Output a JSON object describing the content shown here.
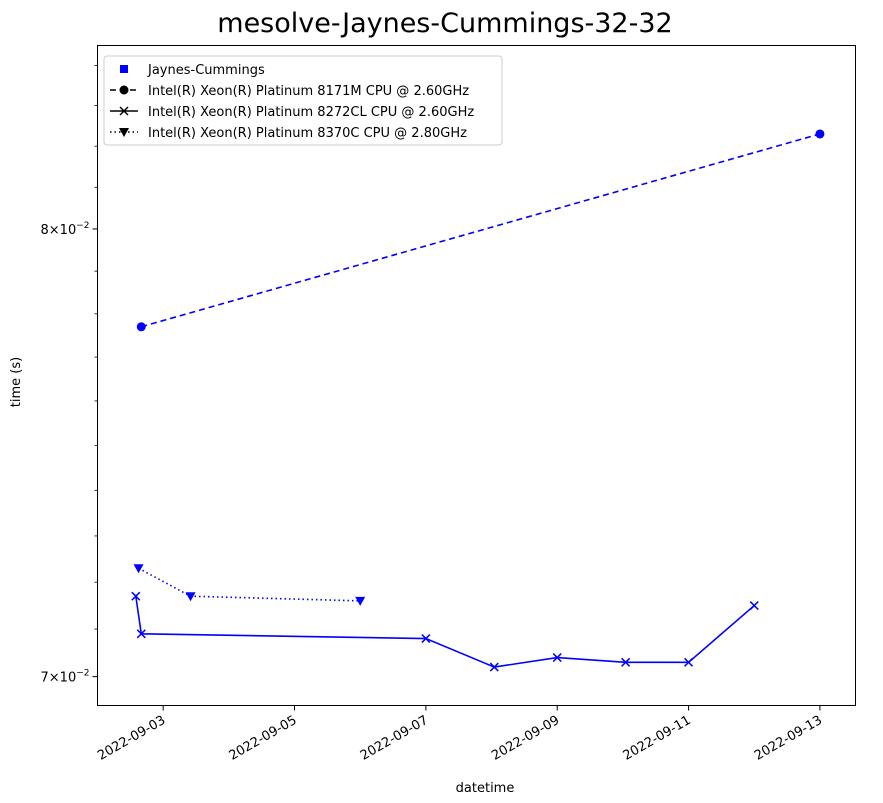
{
  "chart_data": {
    "type": "line",
    "title": "mesolve-Jaynes-Cummings-32-32",
    "xlabel": "datetime",
    "ylabel": "time (s)",
    "yscale": "log",
    "x_tick_labels": [
      "2022-09-03",
      "2022-09-05",
      "2022-09-07",
      "2022-09-09",
      "2022-09-11",
      "2022-09-13"
    ],
    "y_tick_labels": [
      {
        "value": 0.08,
        "mantissa": "8",
        "base": "10",
        "exponent": "−2"
      },
      {
        "value": 0.07,
        "mantissa": "7",
        "base": "10",
        "exponent": "−2"
      }
    ],
    "xlim": [
      "2022-09-02 00:00",
      "2022-09-13 13:00"
    ],
    "ylim": [
      0.0694,
      0.0845
    ],
    "grid": false,
    "legend_position": "top-left",
    "legend_entries": [
      {
        "label": "Jaynes-Cummings",
        "marker": "square",
        "line": "none"
      },
      {
        "label": "Intel(R) Xeon(R) Platinum 8171M CPU @ 2.60GHz",
        "marker": "circle",
        "line": "dashed"
      },
      {
        "label": "Intel(R) Xeon(R) Platinum 8272CL CPU @ 2.60GHz",
        "marker": "x",
        "line": "solid"
      },
      {
        "label": "Intel(R) Xeon(R) Platinum 8370C CPU @ 2.80GHz",
        "marker": "triangle-down",
        "line": "dotted"
      }
    ],
    "series": [
      {
        "name": "Intel(R) Xeon(R) Platinum 8171M CPU @ 2.60GHz",
        "color": "#0000ff",
        "marker": "circle",
        "line": "dashed",
        "x": [
          "2022-09-02 16:00",
          "2022-09-13 00:00"
        ],
        "y": [
          0.0777,
          0.0823
        ]
      },
      {
        "name": "Intel(R) Xeon(R) Platinum 8272CL CPU @ 2.60GHz",
        "color": "#0000ff",
        "marker": "x",
        "line": "solid",
        "x": [
          "2022-09-02 14:00",
          "2022-09-02 16:00",
          "2022-09-07 00:00",
          "2022-09-08 01:00",
          "2022-09-09 00:00",
          "2022-09-10 01:00",
          "2022-09-11 00:00",
          "2022-09-12 00:00"
        ],
        "y": [
          0.0717,
          0.0709,
          0.0708,
          0.0702,
          0.0704,
          0.0703,
          0.0703,
          0.0715
        ]
      },
      {
        "name": "Intel(R) Xeon(R) Platinum 8370C CPU @ 2.80GHz",
        "color": "#0000ff",
        "marker": "triangle-down",
        "line": "dotted",
        "x": [
          "2022-09-02 15:00",
          "2022-09-03 10:00",
          "2022-09-06 00:00"
        ],
        "y": [
          0.0723,
          0.0717,
          0.0716
        ]
      }
    ]
  }
}
